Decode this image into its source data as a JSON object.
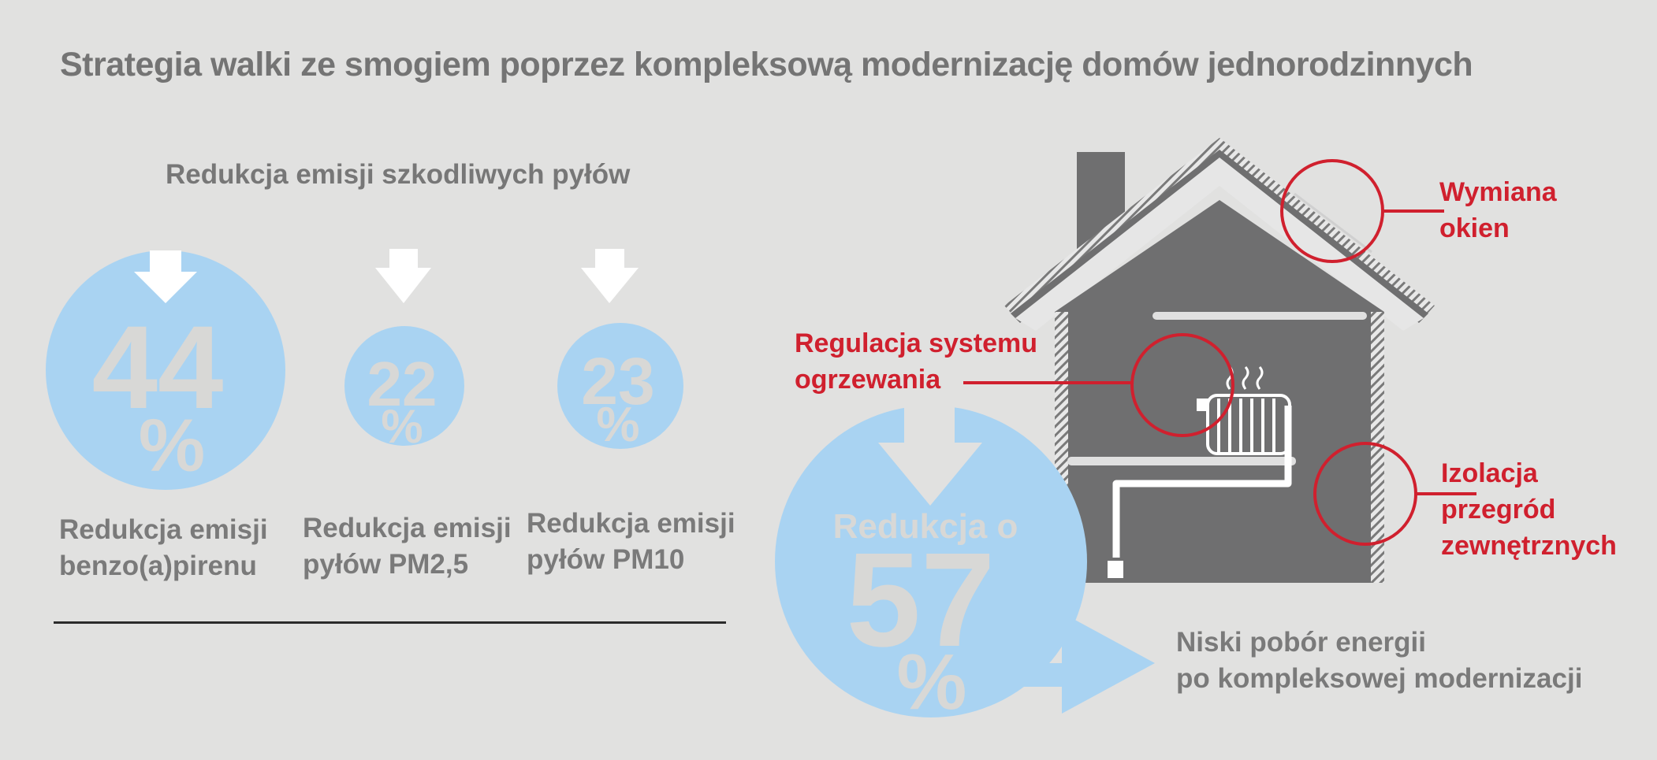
{
  "title": "Strategia walki ze smogiem poprzez kompleksową modernizację domów jednorodzinnych",
  "subtitle": "Redukcja emisji szkodliwych pyłów",
  "stats": [
    {
      "value": "44",
      "unit": "%",
      "label_line1": "Redukcja emisji",
      "label_line2": "benzo(a)pirenu"
    },
    {
      "value": "22",
      "unit": "%",
      "label_line1": "Redukcja emisji",
      "label_line2": "pyłów PM2,5"
    },
    {
      "value": "23",
      "unit": "%",
      "label_line1": "Redukcja emisji",
      "label_line2": "pyłów PM10"
    }
  ],
  "big_stat": {
    "prefix": "Redukcja o",
    "value": "57",
    "unit": "%"
  },
  "energy": {
    "line1": "Niski pobór energii",
    "line2": "po kompleksowej modernizacji"
  },
  "callouts": {
    "windows": {
      "line1": "Wymiana",
      "line2": "okien"
    },
    "heating": {
      "line1": "Regulacja systemu",
      "line2": "ogrzewania"
    },
    "insulation": {
      "line1": "Izolacja",
      "line2": "przegród",
      "line3": "zewnętrznych"
    }
  },
  "colors": {
    "background": "#e1e1e0",
    "circle_blue": "#a9d3f2",
    "digit_grey": "#d8d8d6",
    "house_grey": "#6f6f70",
    "accent_red": "#d0202e",
    "text_grey": "#777777"
  }
}
